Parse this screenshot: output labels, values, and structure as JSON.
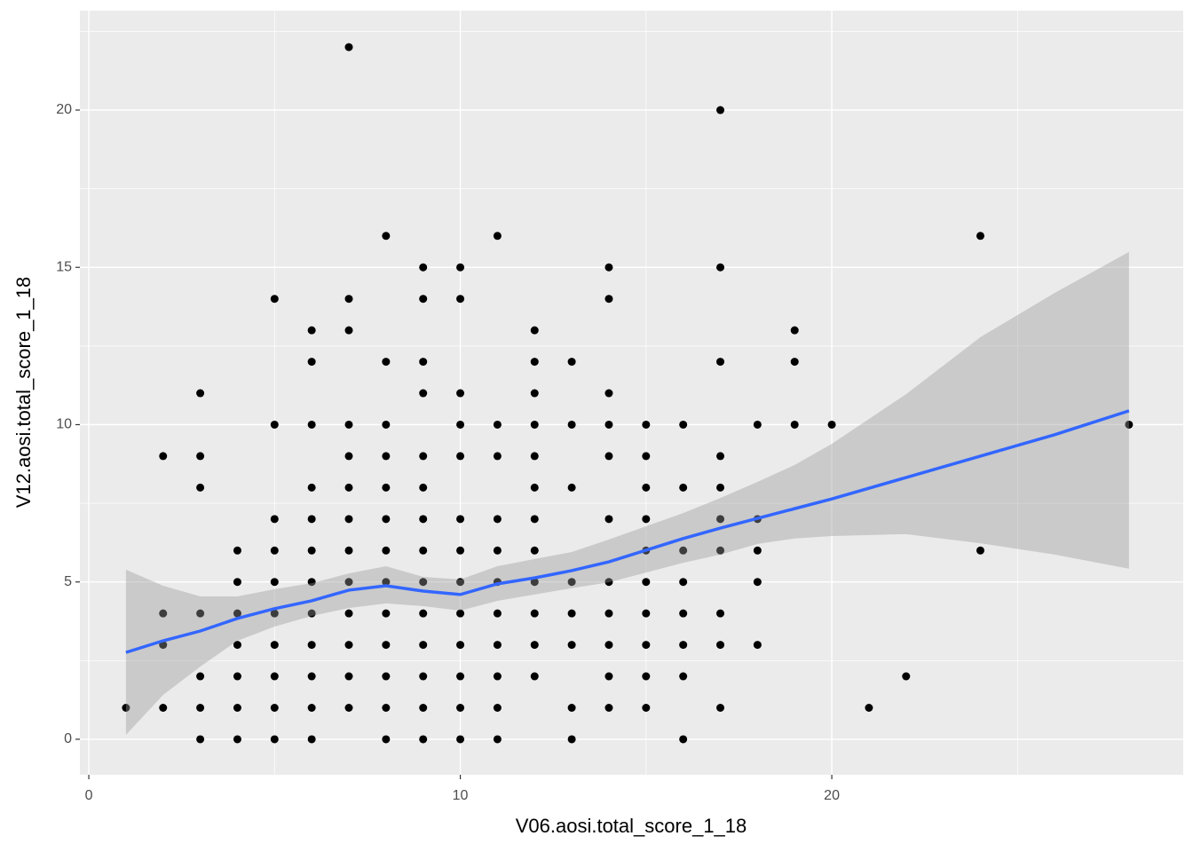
{
  "chart_data": {
    "type": "scatter",
    "x_label": "V06.aosi.total_score_1_18",
    "y_label": "V12.aosi.total_score_1_18",
    "xlim": [
      -0.24,
      29.46
    ],
    "ylim": [
      -1.13,
      23.16
    ],
    "xticks": [
      0,
      10,
      20
    ],
    "yticks": [
      0,
      5,
      10,
      15,
      20
    ],
    "grid": true,
    "points": {
      "color": "#000000",
      "x": [
        1,
        2,
        2,
        2,
        2,
        3,
        3,
        3,
        3,
        3,
        3,
        3,
        4,
        4,
        4,
        4,
        4,
        4,
        4,
        5,
        5,
        5,
        5,
        5,
        5,
        5,
        5,
        5,
        5,
        6,
        6,
        6,
        6,
        6,
        6,
        6,
        6,
        6,
        6,
        6,
        6,
        7,
        7,
        7,
        7,
        7,
        7,
        7,
        7,
        7,
        7,
        7,
        7,
        7,
        8,
        8,
        8,
        8,
        8,
        8,
        8,
        8,
        8,
        8,
        8,
        8,
        8,
        9,
        9,
        9,
        9,
        9,
        9,
        9,
        9,
        9,
        9,
        9,
        9,
        9,
        9,
        10,
        10,
        10,
        10,
        10,
        10,
        10,
        10,
        10,
        10,
        10,
        10,
        10,
        11,
        11,
        11,
        11,
        11,
        11,
        11,
        11,
        11,
        11,
        11,
        12,
        12,
        12,
        12,
        12,
        12,
        12,
        12,
        12,
        12,
        12,
        12,
        13,
        13,
        13,
        13,
        13,
        13,
        13,
        13,
        14,
        14,
        14,
        14,
        14,
        14,
        14,
        14,
        14,
        14,
        14,
        15,
        15,
        15,
        15,
        15,
        15,
        15,
        15,
        15,
        15,
        16,
        16,
        16,
        16,
        16,
        16,
        16,
        16,
        17,
        17,
        17,
        17,
        17,
        17,
        17,
        17,
        17,
        17,
        18,
        18,
        18,
        18,
        18,
        19,
        19,
        19,
        20,
        21,
        22,
        24,
        24,
        28
      ],
      "y": [
        1,
        9,
        4,
        3,
        1,
        11,
        9,
        8,
        4,
        2,
        1,
        0,
        6,
        5,
        4,
        3,
        2,
        1,
        0,
        14,
        10,
        7,
        6,
        5,
        4,
        3,
        2,
        1,
        0,
        13,
        12,
        10,
        8,
        7,
        6,
        5,
        4,
        3,
        2,
        1,
        0,
        22,
        14,
        13,
        10,
        9,
        8,
        7,
        6,
        5,
        4,
        3,
        2,
        1,
        16,
        12,
        10,
        9,
        8,
        7,
        6,
        5,
        4,
        3,
        2,
        1,
        0,
        15,
        14,
        12,
        11,
        9,
        8,
        7,
        6,
        5,
        4,
        3,
        2,
        1,
        0,
        15,
        14,
        11,
        10,
        9,
        7,
        6,
        5,
        4,
        3,
        2,
        1,
        0,
        16,
        10,
        9,
        7,
        6,
        5,
        4,
        3,
        2,
        1,
        0,
        13,
        12,
        11,
        10,
        9,
        8,
        7,
        6,
        5,
        4,
        3,
        2,
        12,
        10,
        8,
        5,
        4,
        3,
        1,
        0,
        15,
        14,
        11,
        10,
        9,
        7,
        5,
        4,
        3,
        2,
        1,
        10,
        9,
        8,
        7,
        6,
        5,
        4,
        3,
        2,
        1,
        10,
        8,
        6,
        5,
        4,
        3,
        2,
        0,
        20,
        15,
        12,
        9,
        8,
        7,
        6,
        4,
        3,
        1,
        10,
        7,
        6,
        5,
        3,
        13,
        12,
        10,
        10,
        1,
        2,
        16,
        6,
        10
      ]
    },
    "smooth": {
      "color": "#3366ff",
      "band_color": "#999999",
      "x": [
        1,
        2,
        3,
        4,
        5,
        6,
        7,
        8,
        9,
        10,
        11,
        12,
        13,
        14,
        15,
        16,
        17,
        18,
        19,
        20,
        22,
        24,
        26,
        28
      ],
      "values": [
        2.76,
        3.13,
        3.44,
        3.84,
        4.15,
        4.4,
        4.74,
        4.88,
        4.71,
        4.6,
        4.94,
        5.13,
        5.36,
        5.64,
        6.01,
        6.38,
        6.71,
        7.02,
        7.33,
        7.64,
        8.32,
        9.0,
        9.68,
        10.44
      ],
      "upper": [
        5.39,
        4.88,
        4.54,
        4.54,
        4.77,
        4.96,
        5.27,
        5.5,
        5.16,
        5.08,
        5.5,
        5.73,
        5.95,
        6.35,
        6.77,
        7.19,
        7.67,
        8.18,
        8.72,
        9.39,
        10.97,
        12.78,
        14.19,
        15.49
      ],
      "lower": [
        0.14,
        1.41,
        2.31,
        3.13,
        3.58,
        3.92,
        4.17,
        4.32,
        4.23,
        4.09,
        4.4,
        4.6,
        4.8,
        4.99,
        5.3,
        5.61,
        5.87,
        6.21,
        6.38,
        6.46,
        6.52,
        6.23,
        5.87,
        5.42
      ]
    }
  }
}
